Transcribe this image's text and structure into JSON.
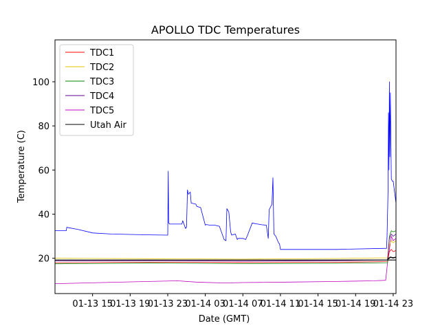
{
  "chart_data": {
    "type": "line",
    "title": "APOLLO TDC Temperatures",
    "xlabel": "Date (GMT)",
    "ylabel": "Temperature (C)",
    "x_unit": "hours since 01-13 11:00 GMT",
    "xlim": [
      0,
      36.3
    ],
    "ylim": [
      4,
      119
    ],
    "x_ticks": [
      {
        "value": 4,
        "label": "01-13 15"
      },
      {
        "value": 8,
        "label": "01-13 19"
      },
      {
        "value": 12,
        "label": "01-13 23"
      },
      {
        "value": 16,
        "label": "01-14 03"
      },
      {
        "value": 20,
        "label": "01-14 07"
      },
      {
        "value": 24,
        "label": "01-14 11"
      },
      {
        "value": 28,
        "label": "01-14 15"
      },
      {
        "value": 32,
        "label": "01-14 19"
      },
      {
        "value": 36,
        "label": "01-14 23"
      }
    ],
    "y_ticks": [
      20,
      40,
      60,
      80,
      100
    ],
    "legend_position": "upper-left",
    "series": [
      {
        "name": "TDC1",
        "color": "#ff0000",
        "x": [
          0,
          10,
          20,
          30,
          35.4,
          35.6,
          35.8,
          36.0,
          36.3
        ],
        "y": [
          18,
          18.2,
          18.1,
          18.2,
          18.5,
          23,
          24,
          23,
          23.5
        ]
      },
      {
        "name": "TDC2",
        "color": "#e6c300",
        "x": [
          0,
          10,
          20,
          30,
          35.4,
          35.6,
          35.8,
          36.0,
          36.3
        ],
        "y": [
          20,
          19.8,
          19.6,
          19.9,
          20.2,
          26,
          28,
          27,
          28
        ]
      },
      {
        "name": "TDC3",
        "color": "#008000",
        "x": [
          0,
          10,
          20,
          30,
          35.4,
          35.6,
          35.8,
          36.0,
          36.3
        ],
        "y": [
          17.5,
          17.8,
          17.6,
          17.7,
          18,
          30,
          32.5,
          32,
          32.5
        ]
      },
      {
        "name": "TDC4",
        "color": "#5b0090",
        "x": [
          0,
          10,
          20,
          30,
          35.4,
          35.6,
          35.8,
          36.0,
          36.3
        ],
        "y": [
          18.8,
          18.9,
          18.7,
          18.9,
          19.2,
          29,
          31,
          30,
          31
        ]
      },
      {
        "name": "TDC5",
        "color": "#bf00bf",
        "x": [
          0,
          5,
          10,
          13,
          15,
          18,
          20,
          25,
          30,
          34,
          35.2,
          35.4,
          35.6,
          35.8,
          36.0,
          36.3
        ],
        "y": [
          8.5,
          9,
          9.5,
          9.8,
          9.2,
          8.8,
          9,
          9.2,
          9.5,
          9.8,
          10,
          18,
          24,
          30,
          28,
          29
        ]
      },
      {
        "name": "Utah Air",
        "color": "#000000",
        "x": [
          0,
          36.3
        ],
        "y": [
          19.2,
          19.2
        ],
        "extra_x": [
          35.4,
          35.7,
          36.0,
          36.3
        ],
        "extra_y": [
          19.5,
          20.5,
          20.2,
          20.5
        ]
      },
      {
        "name": "APOLLO",
        "color": "#0000ff",
        "legend": false,
        "x": [
          0,
          1.2,
          1.25,
          2.5,
          4,
          6,
          8,
          10,
          12.0,
          12.05,
          12.1,
          12.15,
          12.2,
          13.5,
          13.6,
          13.9,
          14.0,
          14.1,
          14.2,
          14.4,
          14.5,
          15.0,
          15.1,
          15.5,
          16.0,
          16.1,
          16.5,
          17.0,
          17.5,
          18.0,
          18.2,
          18.3,
          18.5,
          18.7,
          18.8,
          19.2,
          19.4,
          19.5,
          20.0,
          20.3,
          20.5,
          21.0,
          21.5,
          21.6,
          22.0,
          22.5,
          22.7,
          22.8,
          23.1,
          23.2,
          23.3,
          23.5,
          23.8,
          23.9,
          24.0,
          30,
          35.3,
          35.35,
          35.45,
          35.5,
          35.55,
          35.6,
          35.65,
          35.7,
          35.8,
          35.9,
          36.0,
          36.3
        ],
        "y": [
          32.5,
          32.5,
          34,
          33,
          31.5,
          31,
          30.8,
          30.6,
          30.5,
          59.5,
          36,
          35.8,
          35.5,
          35.5,
          37,
          33.5,
          34,
          51,
          49,
          50,
          45,
          44.5,
          43.5,
          43,
          35,
          35.3,
          35,
          35,
          34.5,
          28.5,
          28,
          42.5,
          41,
          32,
          30.5,
          31,
          28.5,
          29,
          29,
          28.5,
          30.5,
          36,
          35.5,
          35.5,
          35.2,
          35,
          29,
          42,
          44.5,
          56.5,
          31,
          30,
          27,
          26.5,
          24,
          24,
          24.5,
          30,
          50,
          86,
          60,
          100,
          66,
          95,
          56,
          55,
          55,
          45
        ]
      }
    ]
  }
}
